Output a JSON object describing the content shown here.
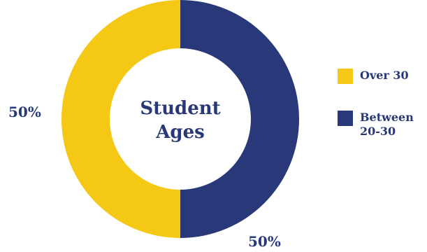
{
  "chart_data": {
    "type": "pie",
    "variant": "donut",
    "title": "Student Ages",
    "categories": [
      "Over 30",
      "Between 20-30"
    ],
    "values": [
      50,
      50
    ],
    "value_labels": [
      "50%",
      "50%"
    ],
    "colors": [
      "#f5c816",
      "#283878"
    ],
    "legend_position": "right"
  }
}
